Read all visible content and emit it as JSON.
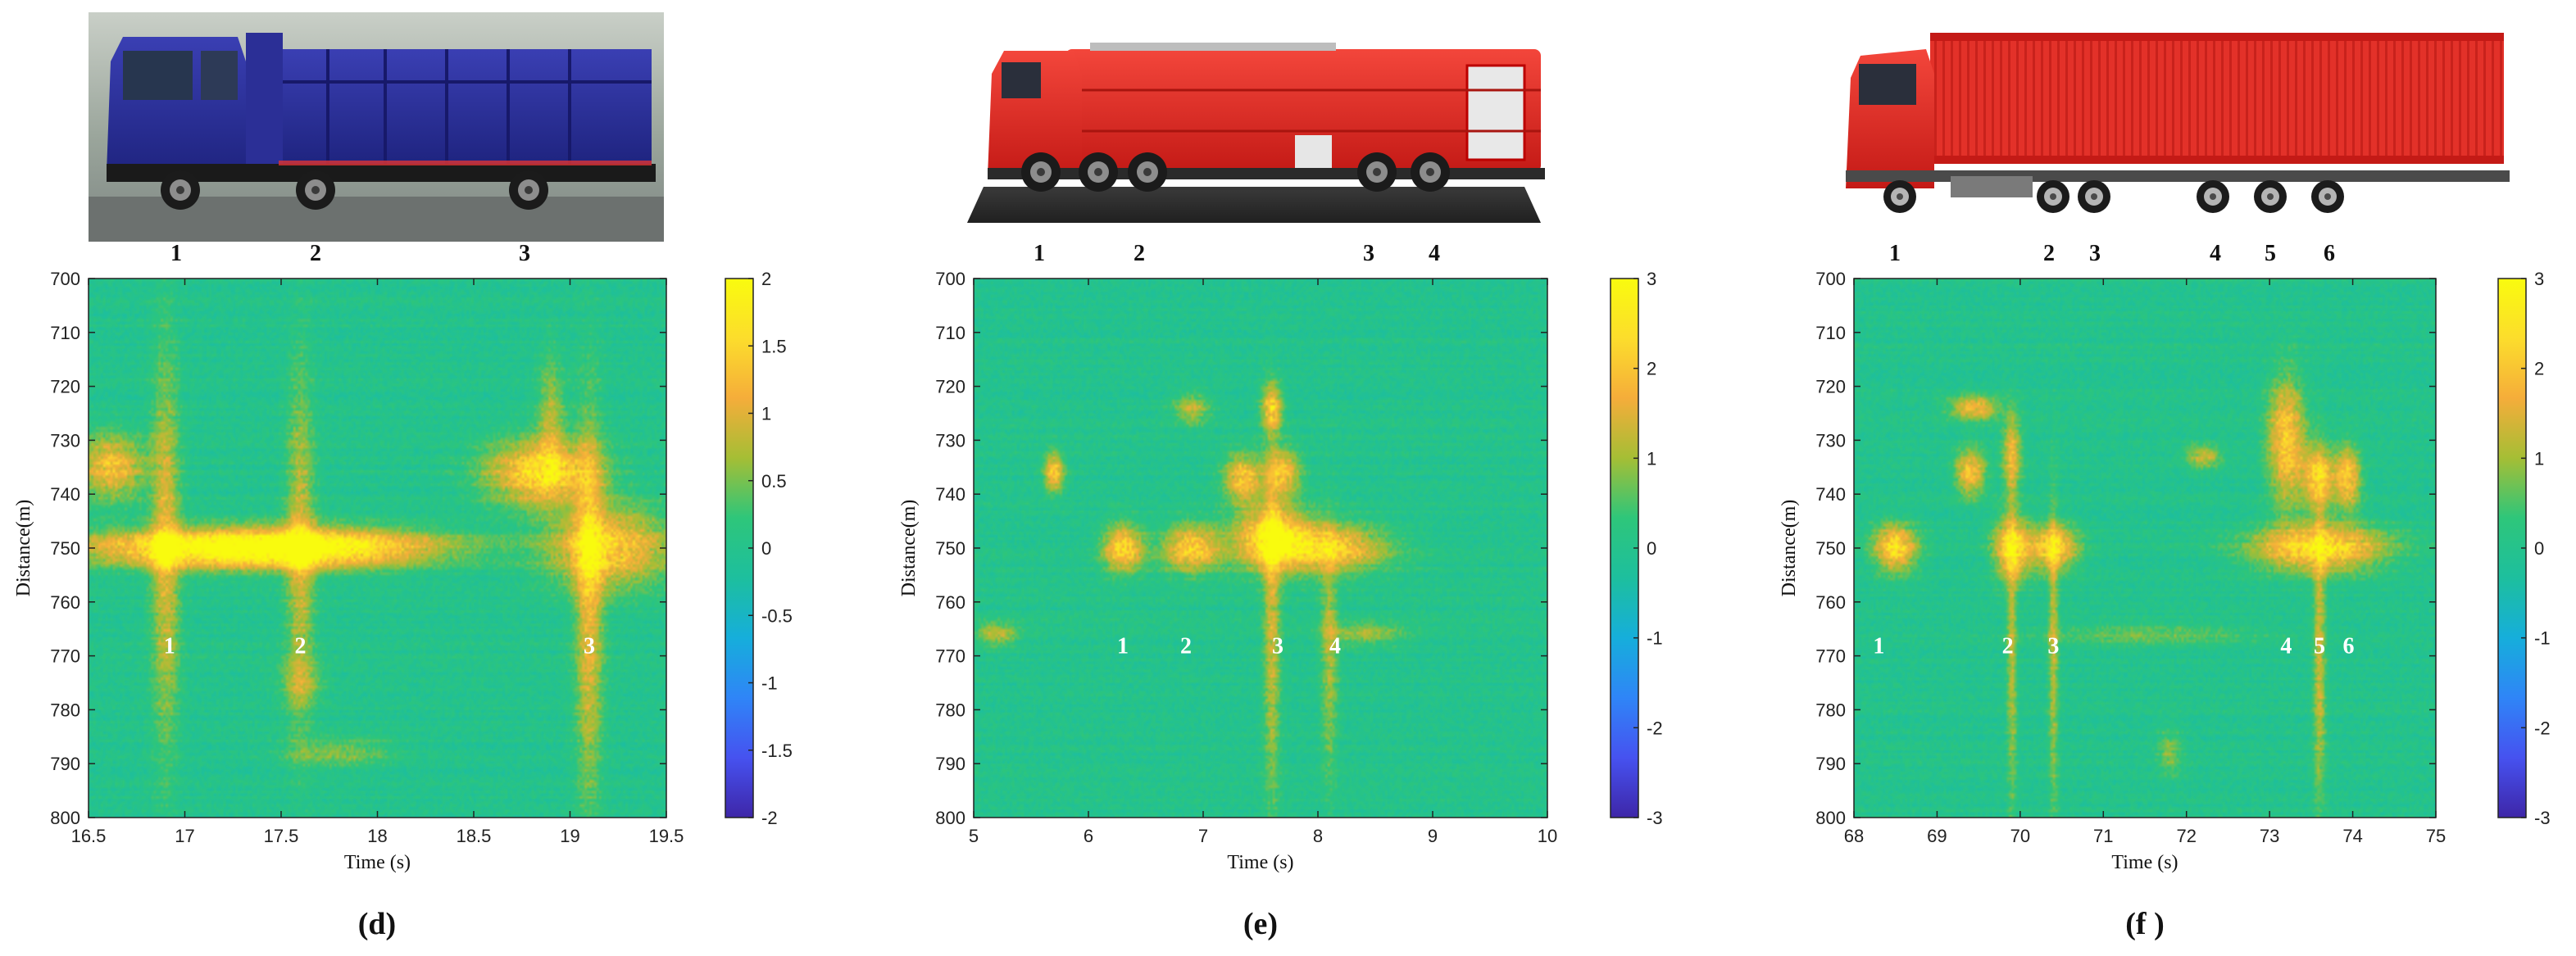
{
  "colors": {
    "background": "#2cae9a",
    "parula": [
      "#3e26a8",
      "#4652f0",
      "#2f85f7",
      "#16aedb",
      "#1dbf9e",
      "#2ec67a",
      "#a5be35",
      "#f5ad3a",
      "#fcdd2c",
      "#f9fb0e"
    ],
    "axle_label_white": "#ffffff"
  },
  "chart_data": [
    {
      "type": "heatmap",
      "panel_label": "(d)",
      "vehicle_icon": "dump-truck",
      "xlabel": "Time (s)",
      "ylabel": "Distance(m)",
      "xlim": [
        16.5,
        19.5
      ],
      "ylim": [
        800,
        700
      ],
      "x_ticks": [
        16.5,
        17,
        17.5,
        18,
        18.5,
        19,
        19.5
      ],
      "x_tick_labels": [
        "16.5",
        "17",
        "17.5",
        "18",
        "18.5",
        "19",
        "19.5"
      ],
      "y_ticks": [
        700,
        710,
        720,
        730,
        740,
        750,
        760,
        770,
        780,
        790,
        800
      ],
      "y_tick_labels": [
        "700",
        "710",
        "720",
        "730",
        "740",
        "750",
        "760",
        "770",
        "780",
        "790",
        "800"
      ],
      "colorbar_ticks": [
        2,
        1.5,
        1,
        0.5,
        0,
        -0.5,
        -1,
        -1.5,
        -2
      ],
      "colorbar_tick_labels": [
        "2",
        "1.5",
        "1",
        "0.5",
        "0",
        "-0.5",
        "-1",
        "-1.5",
        "-2"
      ],
      "colorbar_range": [
        -2,
        2
      ],
      "axle_labels_top": [
        "1",
        "2",
        "3"
      ],
      "axle_events": [
        {
          "label": "1",
          "time": 16.92,
          "distance": 768
        },
        {
          "label": "2",
          "time": 17.6,
          "distance": 768
        },
        {
          "label": "3",
          "time": 19.1,
          "distance": 768
        }
      ],
      "blobs": [
        {
          "t": 17.2,
          "d": 750,
          "st": 0.55,
          "sd": 2.5,
          "a": 0.95
        },
        {
          "t": 17.7,
          "d": 750,
          "st": 0.5,
          "sd": 2.5,
          "a": 0.7
        },
        {
          "t": 16.9,
          "d": 750,
          "st": 0.05,
          "sd": 25,
          "a": 0.55
        },
        {
          "t": 17.6,
          "d": 750,
          "st": 0.05,
          "sd": 22,
          "a": 0.5
        },
        {
          "t": 16.62,
          "d": 735,
          "st": 0.12,
          "sd": 4,
          "a": 0.7
        },
        {
          "t": 18.85,
          "d": 736,
          "st": 0.2,
          "sd": 4,
          "a": 0.9
        },
        {
          "t": 19.2,
          "d": 750,
          "st": 0.22,
          "sd": 5,
          "a": 0.8
        },
        {
          "t": 19.1,
          "d": 760,
          "st": 0.05,
          "sd": 25,
          "a": 0.6
        },
        {
          "t": 18.9,
          "d": 726,
          "st": 0.05,
          "sd": 8,
          "a": 0.4
        },
        {
          "t": 17.8,
          "d": 788,
          "st": 0.2,
          "sd": 2,
          "a": 0.3
        },
        {
          "t": 17.6,
          "d": 775,
          "st": 0.08,
          "sd": 3,
          "a": 0.3
        }
      ]
    },
    {
      "type": "heatmap",
      "panel_label": "(e)",
      "vehicle_icon": "fire-truck",
      "xlabel": "Time (s)",
      "ylabel": "Distance(m)",
      "xlim": [
        5,
        10
      ],
      "ylim": [
        800,
        700
      ],
      "x_ticks": [
        5,
        6,
        7,
        8,
        9,
        10
      ],
      "x_tick_labels": [
        "5",
        "6",
        "7",
        "8",
        "9",
        "10"
      ],
      "y_ticks": [
        700,
        710,
        720,
        730,
        740,
        750,
        760,
        770,
        780,
        790,
        800
      ],
      "y_tick_labels": [
        "700",
        "710",
        "720",
        "730",
        "740",
        "750",
        "760",
        "770",
        "780",
        "790",
        "800"
      ],
      "colorbar_ticks": [
        3,
        2,
        1,
        0,
        -1,
        -2,
        -3
      ],
      "colorbar_tick_labels": [
        "3",
        "2",
        "1",
        "0",
        "-1",
        "-2",
        "-3"
      ],
      "colorbar_range": [
        -3,
        3
      ],
      "axle_labels_top": [
        "1",
        "2",
        "3",
        "4"
      ],
      "axle_events": [
        {
          "label": "1",
          "time": 6.3,
          "distance": 768
        },
        {
          "label": "2",
          "time": 6.85,
          "distance": 768
        },
        {
          "label": "3",
          "time": 7.65,
          "distance": 768
        },
        {
          "label": "4",
          "time": 8.15,
          "distance": 768
        }
      ],
      "blobs": [
        {
          "t": 6.3,
          "d": 750,
          "st": 0.12,
          "sd": 3,
          "a": 0.85
        },
        {
          "t": 6.9,
          "d": 750,
          "st": 0.18,
          "sd": 3,
          "a": 0.8
        },
        {
          "t": 7.6,
          "d": 748,
          "st": 0.22,
          "sd": 4,
          "a": 0.95
        },
        {
          "t": 8.1,
          "d": 750,
          "st": 0.35,
          "sd": 3,
          "a": 0.8
        },
        {
          "t": 7.35,
          "d": 737,
          "st": 0.12,
          "sd": 3,
          "a": 0.75
        },
        {
          "t": 7.7,
          "d": 736,
          "st": 0.1,
          "sd": 3,
          "a": 0.7
        },
        {
          "t": 7.6,
          "d": 724,
          "st": 0.06,
          "sd": 3,
          "a": 0.8
        },
        {
          "t": 5.7,
          "d": 736,
          "st": 0.06,
          "sd": 2.5,
          "a": 0.75
        },
        {
          "t": 6.9,
          "d": 724,
          "st": 0.12,
          "sd": 2,
          "a": 0.45
        },
        {
          "t": 7.6,
          "d": 765,
          "st": 0.05,
          "sd": 22,
          "a": 0.5
        },
        {
          "t": 8.1,
          "d": 770,
          "st": 0.05,
          "sd": 15,
          "a": 0.4
        },
        {
          "t": 5.2,
          "d": 766,
          "st": 0.12,
          "sd": 1.5,
          "a": 0.45
        },
        {
          "t": 8.4,
          "d": 766,
          "st": 0.25,
          "sd": 1.5,
          "a": 0.35
        }
      ]
    },
    {
      "type": "heatmap",
      "panel_label": "(f )",
      "vehicle_icon": "container-truck",
      "xlabel": "Time (s)",
      "ylabel": "Distance(m)",
      "xlim": [
        68,
        75
      ],
      "ylim": [
        800,
        700
      ],
      "x_ticks": [
        68,
        69,
        70,
        71,
        72,
        73,
        74,
        75
      ],
      "x_tick_labels": [
        "68",
        "69",
        "70",
        "71",
        "72",
        "73",
        "74",
        "75"
      ],
      "y_ticks": [
        700,
        710,
        720,
        730,
        740,
        750,
        760,
        770,
        780,
        790,
        800
      ],
      "y_tick_labels": [
        "700",
        "710",
        "720",
        "730",
        "740",
        "750",
        "760",
        "770",
        "780",
        "790",
        "800"
      ],
      "colorbar_ticks": [
        3,
        2,
        1,
        0,
        -1,
        -2,
        -3
      ],
      "colorbar_tick_labels": [
        "3",
        "2",
        "1",
        "0",
        "-1",
        "-2",
        "-3"
      ],
      "colorbar_range": [
        -3,
        3
      ],
      "axle_labels_top": [
        "1",
        "2",
        "3",
        "4",
        "5",
        "6"
      ],
      "axle_events": [
        {
          "label": "1",
          "time": 68.3,
          "distance": 768
        },
        {
          "label": "2",
          "time": 69.85,
          "distance": 768
        },
        {
          "label": "3",
          "time": 70.4,
          "distance": 768
        },
        {
          "label": "4",
          "time": 73.2,
          "distance": 768
        },
        {
          "label": "5",
          "time": 73.6,
          "distance": 768
        },
        {
          "label": "6",
          "time": 73.95,
          "distance": 768
        }
      ],
      "blobs": [
        {
          "t": 68.5,
          "d": 750,
          "st": 0.18,
          "sd": 3,
          "a": 0.9
        },
        {
          "t": 69.9,
          "d": 750,
          "st": 0.15,
          "sd": 4,
          "a": 0.9
        },
        {
          "t": 70.4,
          "d": 750,
          "st": 0.2,
          "sd": 3,
          "a": 0.85
        },
        {
          "t": 73.6,
          "d": 750,
          "st": 0.55,
          "sd": 3,
          "a": 0.95
        },
        {
          "t": 73.2,
          "d": 730,
          "st": 0.15,
          "sd": 8,
          "a": 0.8
        },
        {
          "t": 73.6,
          "d": 737,
          "st": 0.15,
          "sd": 4,
          "a": 0.8
        },
        {
          "t": 73.95,
          "d": 737,
          "st": 0.1,
          "sd": 4,
          "a": 0.75
        },
        {
          "t": 69.4,
          "d": 736,
          "st": 0.12,
          "sd": 3,
          "a": 0.75
        },
        {
          "t": 69.45,
          "d": 724,
          "st": 0.2,
          "sd": 1.5,
          "a": 0.7
        },
        {
          "t": 69.9,
          "d": 733,
          "st": 0.08,
          "sd": 5,
          "a": 0.6
        },
        {
          "t": 72.2,
          "d": 733,
          "st": 0.15,
          "sd": 1.5,
          "a": 0.5
        },
        {
          "t": 71.5,
          "d": 766,
          "st": 0.9,
          "sd": 1.5,
          "a": 0.25
        },
        {
          "t": 73.6,
          "d": 770,
          "st": 0.05,
          "sd": 20,
          "a": 0.5
        },
        {
          "t": 69.9,
          "d": 770,
          "st": 0.04,
          "sd": 20,
          "a": 0.45
        },
        {
          "t": 70.4,
          "d": 770,
          "st": 0.04,
          "sd": 20,
          "a": 0.45
        },
        {
          "t": 71.8,
          "d": 788,
          "st": 0.1,
          "sd": 3,
          "a": 0.3
        }
      ]
    }
  ]
}
